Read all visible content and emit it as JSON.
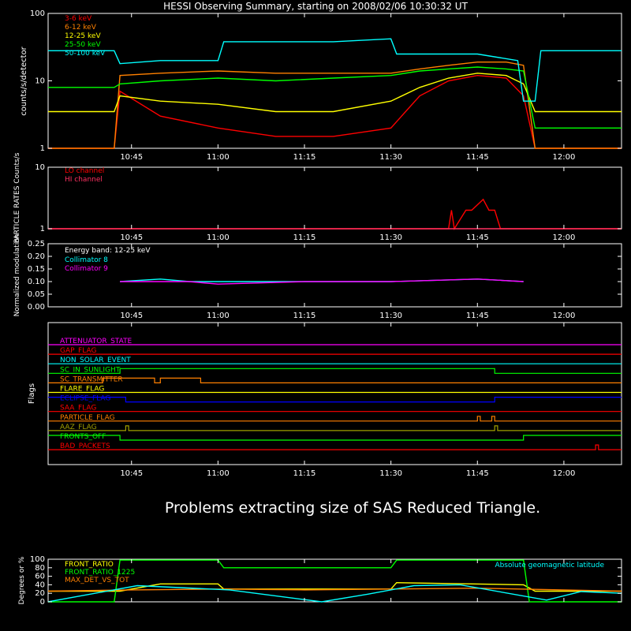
{
  "title": "HESSI Observing Summary, starting on 2008/02/06 10:30:32 UT",
  "message": "Problems extracting size of SAS Reduced Triangle.",
  "colors": {
    "background": "#000000",
    "axes": "#ffffff",
    "red": "#ff0000",
    "orange": "#ff8000",
    "yellow": "#ffff00",
    "green": "#00ff00",
    "cyan": "#00ffff",
    "magenta": "#ff00ff",
    "blue": "#0000ff",
    "olive": "#a0a000",
    "crimson": "#ff3060"
  },
  "chart_data": [
    {
      "id": "lightcurves",
      "type": "line",
      "ylabel": "counts/s/detector",
      "yscale": "log",
      "ylim": [
        1,
        100
      ],
      "ytick_labels": [
        "1",
        "10",
        "100"
      ],
      "xlim": [
        "10:30:32",
        "12:10:00"
      ],
      "xtick_labels": [
        "10:45",
        "11:00",
        "11:15",
        "11:30",
        "11:45",
        "12:00"
      ],
      "legend_location": "top-left",
      "series": [
        {
          "name": "3-6 keV",
          "color": "#ff0000",
          "t": [
            "10:30:32",
            "10:42:00",
            "10:43:00",
            "10:50:00",
            "11:00:00",
            "11:10:00",
            "11:20:00",
            "11:30:00",
            "11:35:00",
            "11:40:00",
            "11:45:00",
            "11:50:00",
            "11:53:00",
            "11:55:00",
            "12:10:00"
          ],
          "y": [
            1,
            1,
            7,
            3,
            2,
            1.5,
            1.5,
            2,
            6,
            10,
            12,
            11,
            6,
            1,
            1
          ]
        },
        {
          "name": "6-12 keV",
          "color": "#ff8000",
          "t": [
            "10:30:32",
            "10:42:00",
            "10:43:00",
            "10:50:00",
            "11:00:00",
            "11:10:00",
            "11:20:00",
            "11:30:00",
            "11:35:00",
            "11:40:00",
            "11:45:00",
            "11:50:00",
            "11:53:00",
            "11:55:00",
            "12:10:00"
          ],
          "y": [
            1,
            1,
            12,
            13,
            14,
            13,
            13,
            13,
            15,
            17,
            19,
            19,
            17,
            1,
            1
          ]
        },
        {
          "name": "12-25 keV",
          "color": "#ffff00",
          "t": [
            "10:30:32",
            "10:42:00",
            "10:43:00",
            "10:50:00",
            "11:00:00",
            "11:10:00",
            "11:20:00",
            "11:30:00",
            "11:35:00",
            "11:40:00",
            "11:45:00",
            "11:50:00",
            "11:53:00",
            "11:55:00",
            "12:10:00"
          ],
          "y": [
            3.5,
            3.5,
            6,
            5,
            4.5,
            3.5,
            3.5,
            5,
            8,
            11,
            13,
            12,
            9,
            3.5,
            3.5
          ]
        },
        {
          "name": "25-50 keV",
          "color": "#00ff00",
          "t": [
            "10:30:32",
            "10:42:00",
            "10:43:00",
            "10:50:00",
            "11:00:00",
            "11:10:00",
            "11:20:00",
            "11:30:00",
            "11:35:00",
            "11:40:00",
            "11:45:00",
            "11:50:00",
            "11:53:00",
            "11:55:00",
            "12:10:00"
          ],
          "y": [
            8,
            8,
            9,
            10,
            11,
            10,
            11,
            12,
            14,
            15,
            16,
            15,
            14,
            2,
            2
          ]
        },
        {
          "name": "50-100 keV",
          "color": "#00ffff",
          "t": [
            "10:30:32",
            "10:42:00",
            "10:43:00",
            "10:50:00",
            "11:00:00",
            "11:01:00",
            "11:20:00",
            "11:30:00",
            "11:31:00",
            "11:45:00",
            "11:52:00",
            "11:53:00",
            "11:55:00",
            "11:56:00",
            "12:10:00"
          ],
          "y": [
            28,
            28,
            18,
            20,
            20,
            38,
            38,
            42,
            25,
            25,
            20,
            5,
            5,
            28,
            28
          ]
        }
      ]
    },
    {
      "id": "particle_rates",
      "type": "line",
      "ylabel": "PARTICLE RATES Counts/s",
      "yscale": "log",
      "ylim": [
        1,
        10
      ],
      "ytick_labels": [
        "1",
        "10"
      ],
      "xtick_labels": [
        "10:45",
        "11:00",
        "11:15",
        "11:30",
        "11:45",
        "12:00"
      ],
      "legend_location": "top-left",
      "series": [
        {
          "name": "LO channel",
          "color": "#ff0000",
          "t": [
            "10:30:32",
            "11:40:00",
            "11:40:30",
            "11:41:00",
            "11:43:00",
            "11:44:00",
            "11:46:00",
            "11:47:00",
            "11:48:00",
            "11:49:00",
            "12:10:00"
          ],
          "y": [
            1,
            1,
            2,
            1,
            2,
            2,
            3,
            2,
            2,
            1,
            1
          ]
        },
        {
          "name": "HI channel",
          "color": "#ff3060",
          "t": [
            "10:30:32",
            "12:10:00"
          ],
          "y": [
            1,
            1
          ]
        }
      ]
    },
    {
      "id": "modulation",
      "type": "line",
      "ylabel": "Normalized modulation",
      "ylim": [
        0,
        0.25
      ],
      "ytick_labels": [
        "0.00",
        "0.05",
        "0.10",
        "0.15",
        "0.20",
        "0.25"
      ],
      "xtick_labels": [
        "10:45",
        "11:00",
        "11:15",
        "11:30",
        "11:45",
        "12:00"
      ],
      "annotation": "Energy band: 12-25 keV",
      "legend_location": "top-left",
      "series": [
        {
          "name": "Collimator 8",
          "color": "#00ffff",
          "t": [
            "10:43:00",
            "10:50:00",
            "10:55:00",
            "11:00:00",
            "11:15:00",
            "11:30:00",
            "11:45:00",
            "11:53:00"
          ],
          "y": [
            0.1,
            0.11,
            0.1,
            0.1,
            0.1,
            0.1,
            0.11,
            0.1
          ]
        },
        {
          "name": "Collimator 9",
          "color": "#ff00ff",
          "t": [
            "10:43:00",
            "10:50:00",
            "10:55:00",
            "11:00:00",
            "11:15:00",
            "11:30:00",
            "11:45:00",
            "11:53:00"
          ],
          "y": [
            0.1,
            0.1,
            0.1,
            0.09,
            0.1,
            0.1,
            0.11,
            0.1
          ]
        }
      ]
    },
    {
      "id": "flags",
      "type": "line",
      "ylabel": "Flags",
      "xtick_labels": [
        "10:45",
        "11:00",
        "11:15",
        "11:30",
        "11:45",
        "12:00"
      ],
      "series": [
        {
          "name": "ATTENUATOR_STATE",
          "color": "#ff00ff",
          "t": [
            "10:30:32",
            "12:10:00"
          ],
          "y": [
            0,
            0
          ]
        },
        {
          "name": "GAP_FLAG",
          "color": "#ff0000",
          "t": [
            "10:30:32",
            "12:10:00"
          ],
          "y": [
            0,
            0
          ]
        },
        {
          "name": "NON_SOLAR_EVENT",
          "color": "#00ffff",
          "t": [
            "10:30:32",
            "12:10:00"
          ],
          "y": [
            0,
            0
          ]
        },
        {
          "name": "SC_IN_SUNLIGHT",
          "color": "#00ff00",
          "t": [
            "10:30:32",
            "10:43:00",
            "10:43:00",
            "11:48:00",
            "11:48:00",
            "12:10:00"
          ],
          "y": [
            0,
            0,
            1,
            1,
            0,
            0
          ]
        },
        {
          "name": "SC_TRANSMITTER",
          "color": "#ff8000",
          "t": [
            "10:30:32",
            "10:40:00",
            "10:40:00",
            "10:49:00",
            "10:49:00",
            "10:50:00",
            "10:50:00",
            "10:57:00",
            "10:57:00",
            "12:10:00"
          ],
          "y": [
            0,
            0,
            1,
            1,
            0,
            0,
            1,
            1,
            0,
            0
          ]
        },
        {
          "name": "FLARE_FLAG",
          "color": "#ffff00",
          "t": [
            "10:30:32",
            "12:10:00"
          ],
          "y": [
            0,
            0
          ]
        },
        {
          "name": "ECLIPSE_FLAG",
          "color": "#0000ff",
          "t": [
            "10:30:32",
            "10:44:00",
            "10:44:00",
            "11:48:00",
            "11:48:00",
            "12:10:00"
          ],
          "y": [
            1,
            1,
            0,
            0,
            1,
            1
          ]
        },
        {
          "name": "SAA_FLAG",
          "color": "#ff0000",
          "t": [
            "10:30:32",
            "12:10:00"
          ],
          "y": [
            0,
            0
          ]
        },
        {
          "name": "PARTICLE_FLAG",
          "color": "#ff8000",
          "t": [
            "10:30:32",
            "11:45:00",
            "11:45:00",
            "11:45:30",
            "11:45:30",
            "11:47:30",
            "11:47:30",
            "11:48:00",
            "11:48:00",
            "12:10:00"
          ],
          "y": [
            0,
            0,
            1,
            1,
            0,
            0,
            1,
            1,
            0,
            0
          ]
        },
        {
          "name": "AAZ_FLAG",
          "color": "#a0a000",
          "t": [
            "10:30:32",
            "10:44:00",
            "10:44:00",
            "10:44:30",
            "10:44:30",
            "11:48:00",
            "11:48:00",
            "11:48:30",
            "11:48:30",
            "12:10:00"
          ],
          "y": [
            0,
            0,
            1,
            1,
            0,
            0,
            1,
            1,
            0,
            0
          ]
        },
        {
          "name": "FRONTS_OFF",
          "color": "#00ff00",
          "t": [
            "10:30:32",
            "10:43:00",
            "10:43:00",
            "11:53:00",
            "11:53:00",
            "12:10:00"
          ],
          "y": [
            1,
            1,
            0,
            0,
            1,
            1
          ]
        },
        {
          "name": "BAD_PACKETS",
          "color": "#ff0000",
          "t": [
            "10:30:32",
            "12:05:30",
            "12:05:30",
            "12:06:00",
            "12:06:00",
            "12:10:00"
          ],
          "y": [
            0,
            0,
            1,
            1,
            0,
            0
          ]
        }
      ]
    },
    {
      "id": "ratios",
      "type": "line",
      "ylabel": "Degrees or %",
      "ylim": [
        0,
        100
      ],
      "ytick_labels": [
        "0",
        "20",
        "40",
        "60",
        "80",
        "100"
      ],
      "legend_location": "top-left",
      "annotation": "Absolute geomagnetic latitude",
      "series": [
        {
          "name": "FRONT_RATIO",
          "color": "#ffff00",
          "t": [
            "10:30:32",
            "10:43:00",
            "10:50:00",
            "11:00:00",
            "11:01:00",
            "11:30:00",
            "11:31:00",
            "11:53:00",
            "11:55:00",
            "12:10:00"
          ],
          "y": [
            25,
            25,
            42,
            42,
            30,
            30,
            45,
            40,
            25,
            25
          ]
        },
        {
          "name": "FRONT_RATIO_1225",
          "color": "#00ff00",
          "t": [
            "10:30:32",
            "10:42:00",
            "10:43:00",
            "11:00:00",
            "11:01:00",
            "11:30:00",
            "11:31:00",
            "11:53:00",
            "11:54:00",
            "12:10:00"
          ],
          "y": [
            0,
            0,
            98,
            98,
            80,
            80,
            98,
            98,
            0,
            0
          ]
        },
        {
          "name": "MAX_DET_VS_TOT",
          "color": "#ff8000",
          "t": [
            "10:30:32",
            "10:45:00",
            "11:00:00",
            "11:15:00",
            "11:30:00",
            "11:45:00",
            "12:00:00",
            "12:10:00"
          ],
          "y": [
            25,
            28,
            30,
            28,
            30,
            32,
            28,
            25
          ]
        },
        {
          "name": "Absolute geomagnetic latitude",
          "color": "#00ffff",
          "t": [
            "10:30:32",
            "10:46:00",
            "11:02:00",
            "11:18:00",
            "11:26:00",
            "11:34:00",
            "11:42:00",
            "11:57:00",
            "12:03:00",
            "12:10:00"
          ],
          "y": [
            0,
            38,
            28,
            0,
            18,
            38,
            40,
            4,
            24,
            20
          ]
        }
      ]
    }
  ]
}
